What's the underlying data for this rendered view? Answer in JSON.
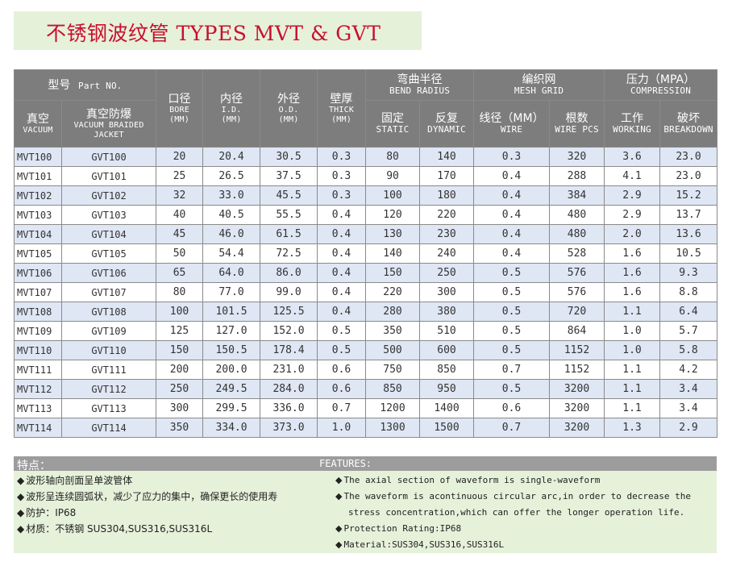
{
  "title": "不锈钢波纹管 TYPES MVT & GVT",
  "header": {
    "model_zh": "型号",
    "model_en": "Part NO.",
    "vacuum_zh": "真空",
    "vacuum_en": "VACUUM",
    "braided_zh": "真空防爆",
    "braided_en": "VACUUM BRAIDED JACKET",
    "bore_zh": "口径",
    "bore_en": "BORE",
    "bore_unit": "(MM)",
    "id_zh": "内径",
    "id_en": "I.D.",
    "id_unit": "(MM)",
    "od_zh": "外径",
    "od_en": "O.D.",
    "od_unit": "(MM)",
    "thick_zh": "壁厚",
    "thick_en": "THICK",
    "thick_unit": "(MM)",
    "bend_zh": "弯曲半径",
    "bend_en": "BEND RADIUS",
    "static_zh": "固定",
    "static_en": "STATIC",
    "dynamic_zh": "反复",
    "dynamic_en": "DYNAMIC",
    "mesh_zh": "编织网",
    "mesh_en": "MESH GRID",
    "wire_zh": "线径（MM）",
    "wire_en": "WIRE",
    "pcs_zh": "根数",
    "pcs_en": "WIRE PCS",
    "pressure_zh": "压力（MPA）",
    "pressure_en": "COMPRESSION",
    "working_zh": "工作",
    "working_en": "WORKING",
    "breakdown_zh": "破坏",
    "breakdown_en": "BREAKDOWN"
  },
  "rows": [
    [
      "MVT100",
      "GVT100",
      "20",
      "20.4",
      "30.5",
      "0.3",
      "80",
      "140",
      "0.3",
      "320",
      "3.6",
      "23.0"
    ],
    [
      "MVT101",
      "GVT101",
      "25",
      "26.5",
      "37.5",
      "0.3",
      "90",
      "170",
      "0.4",
      "288",
      "4.1",
      "23.0"
    ],
    [
      "MVT102",
      "GVT102",
      "32",
      "33.0",
      "45.5",
      "0.3",
      "100",
      "180",
      "0.4",
      "384",
      "2.9",
      "15.2"
    ],
    [
      "MVT103",
      "GVT103",
      "40",
      "40.5",
      "55.5",
      "0.4",
      "120",
      "220",
      "0.4",
      "480",
      "2.9",
      "13.7"
    ],
    [
      "MVT104",
      "GVT104",
      "45",
      "46.0",
      "61.5",
      "0.4",
      "130",
      "230",
      "0.4",
      "480",
      "2.0",
      "13.6"
    ],
    [
      "MVT105",
      "GVT105",
      "50",
      "54.4",
      "72.5",
      "0.4",
      "140",
      "240",
      "0.4",
      "528",
      "1.6",
      "10.5"
    ],
    [
      "MVT106",
      "GVT106",
      "65",
      "64.0",
      "86.0",
      "0.4",
      "150",
      "250",
      "0.5",
      "576",
      "1.6",
      "9.3"
    ],
    [
      "MVT107",
      "GVT107",
      "80",
      "77.0",
      "99.0",
      "0.4",
      "220",
      "300",
      "0.5",
      "576",
      "1.6",
      "8.8"
    ],
    [
      "MVT108",
      "GVT108",
      "100",
      "101.5",
      "125.5",
      "0.4",
      "280",
      "380",
      "0.5",
      "720",
      "1.1",
      "6.4"
    ],
    [
      "MVT109",
      "GVT109",
      "125",
      "127.0",
      "152.0",
      "0.5",
      "350",
      "510",
      "0.5",
      "864",
      "1.0",
      "5.7"
    ],
    [
      "MVT110",
      "GVT110",
      "150",
      "150.5",
      "178.4",
      "0.5",
      "500",
      "600",
      "0.5",
      "1152",
      "1.0",
      "5.8"
    ],
    [
      "MVT111",
      "GVT111",
      "200",
      "200.0",
      "231.0",
      "0.6",
      "750",
      "850",
      "0.7",
      "1152",
      "1.1",
      "4.2"
    ],
    [
      "MVT112",
      "GVT112",
      "250",
      "249.5",
      "284.0",
      "0.6",
      "850",
      "950",
      "0.5",
      "3200",
      "1.1",
      "3.4"
    ],
    [
      "MVT113",
      "GVT113",
      "300",
      "299.5",
      "336.0",
      "0.7",
      "1200",
      "1400",
      "0.6",
      "3200",
      "1.1",
      "3.4"
    ],
    [
      "MVT114",
      "GVT114",
      "350",
      "334.0",
      "373.0",
      "1.0",
      "1300",
      "1500",
      "0.7",
      "3200",
      "1.3",
      "2.9"
    ]
  ],
  "features": {
    "zh_title": "特点：",
    "en_title": "FEATURES:",
    "zh": [
      "波形轴向剖面呈单波管体",
      "波形呈连续圆弧状，减少了应力的集中，确保更长的使用寿",
      "防护：IP68",
      "材质：不锈钢 SUS304,SUS316,SUS316L"
    ],
    "en_1": "The axial section of waveform is single-waveform",
    "en_2a": "The waveform is acontinuous circular arc,in order to decrease the",
    "en_2b": "stress concentration,which can offer the longer operation life.",
    "en_3": "Protection Rating:IP68",
    "en_4": "Material:SUS304,SUS316,SUS316L",
    "bullet": "◆"
  }
}
